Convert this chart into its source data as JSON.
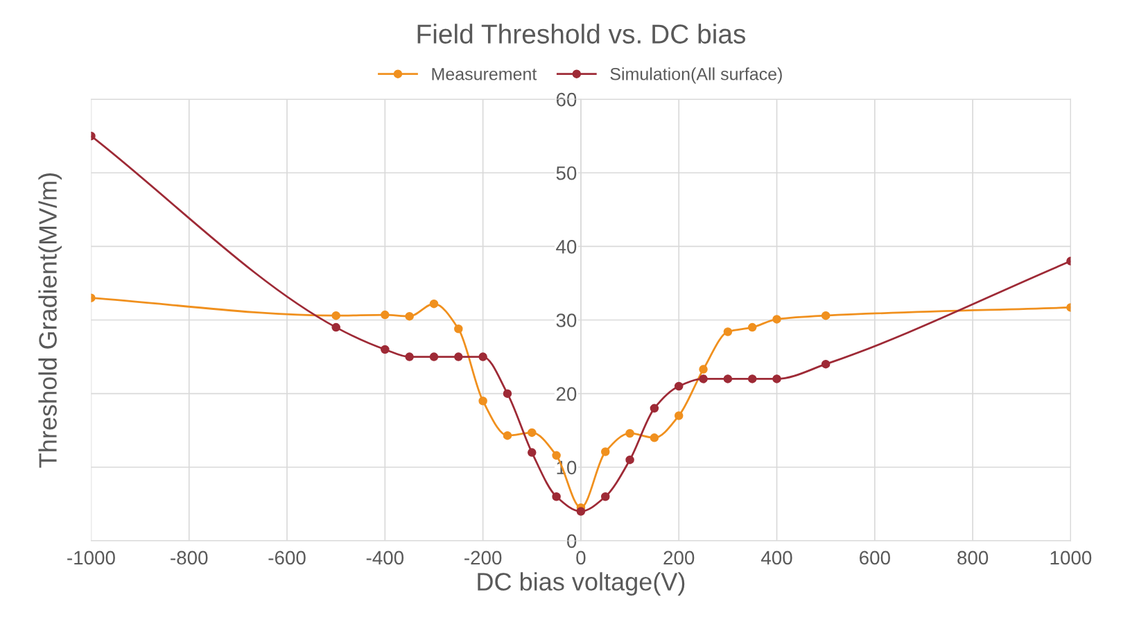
{
  "chart_data": {
    "type": "line",
    "title": "Field Threshold vs. DC bias",
    "xlabel": "DC bias voltage(V)",
    "ylabel": "Threshold Gradient(MV/m)",
    "xlim": [
      -1000,
      1000
    ],
    "xticks": [
      -1000,
      -800,
      -600,
      -400,
      -200,
      0,
      200,
      400,
      600,
      800,
      1000
    ],
    "ylim": [
      0,
      60
    ],
    "yticks": [
      0,
      10,
      20,
      30,
      40,
      50,
      60
    ],
    "grid": true,
    "legend": "top",
    "marker": "circle",
    "line_style": "solid",
    "series": [
      {
        "name": "Measurement",
        "color": "#f0901e",
        "x": [
          -1000,
          -500,
          -400,
          -350,
          -300,
          -250,
          -200,
          -150,
          -100,
          -50,
          0,
          50,
          100,
          150,
          200,
          250,
          300,
          350,
          400,
          500,
          1000
        ],
        "values": [
          33.0,
          30.6,
          30.7,
          30.5,
          32.2,
          28.8,
          19.0,
          14.3,
          14.7,
          11.6,
          4.5,
          12.1,
          14.6,
          14.0,
          17.0,
          23.3,
          28.4,
          29.0,
          30.1,
          30.6,
          31.7
        ]
      },
      {
        "name": "Simulation(All surface)",
        "color": "#9e2a36",
        "x": [
          -1000,
          -500,
          -400,
          -350,
          -300,
          -250,
          -200,
          -150,
          -100,
          -50,
          0,
          50,
          100,
          150,
          200,
          250,
          300,
          350,
          400,
          500,
          1000
        ],
        "values": [
          55,
          29,
          26,
          25,
          25,
          25,
          25,
          20,
          12,
          6,
          4,
          6,
          11,
          18,
          21,
          22,
          22,
          22,
          22,
          24,
          38
        ]
      }
    ]
  }
}
